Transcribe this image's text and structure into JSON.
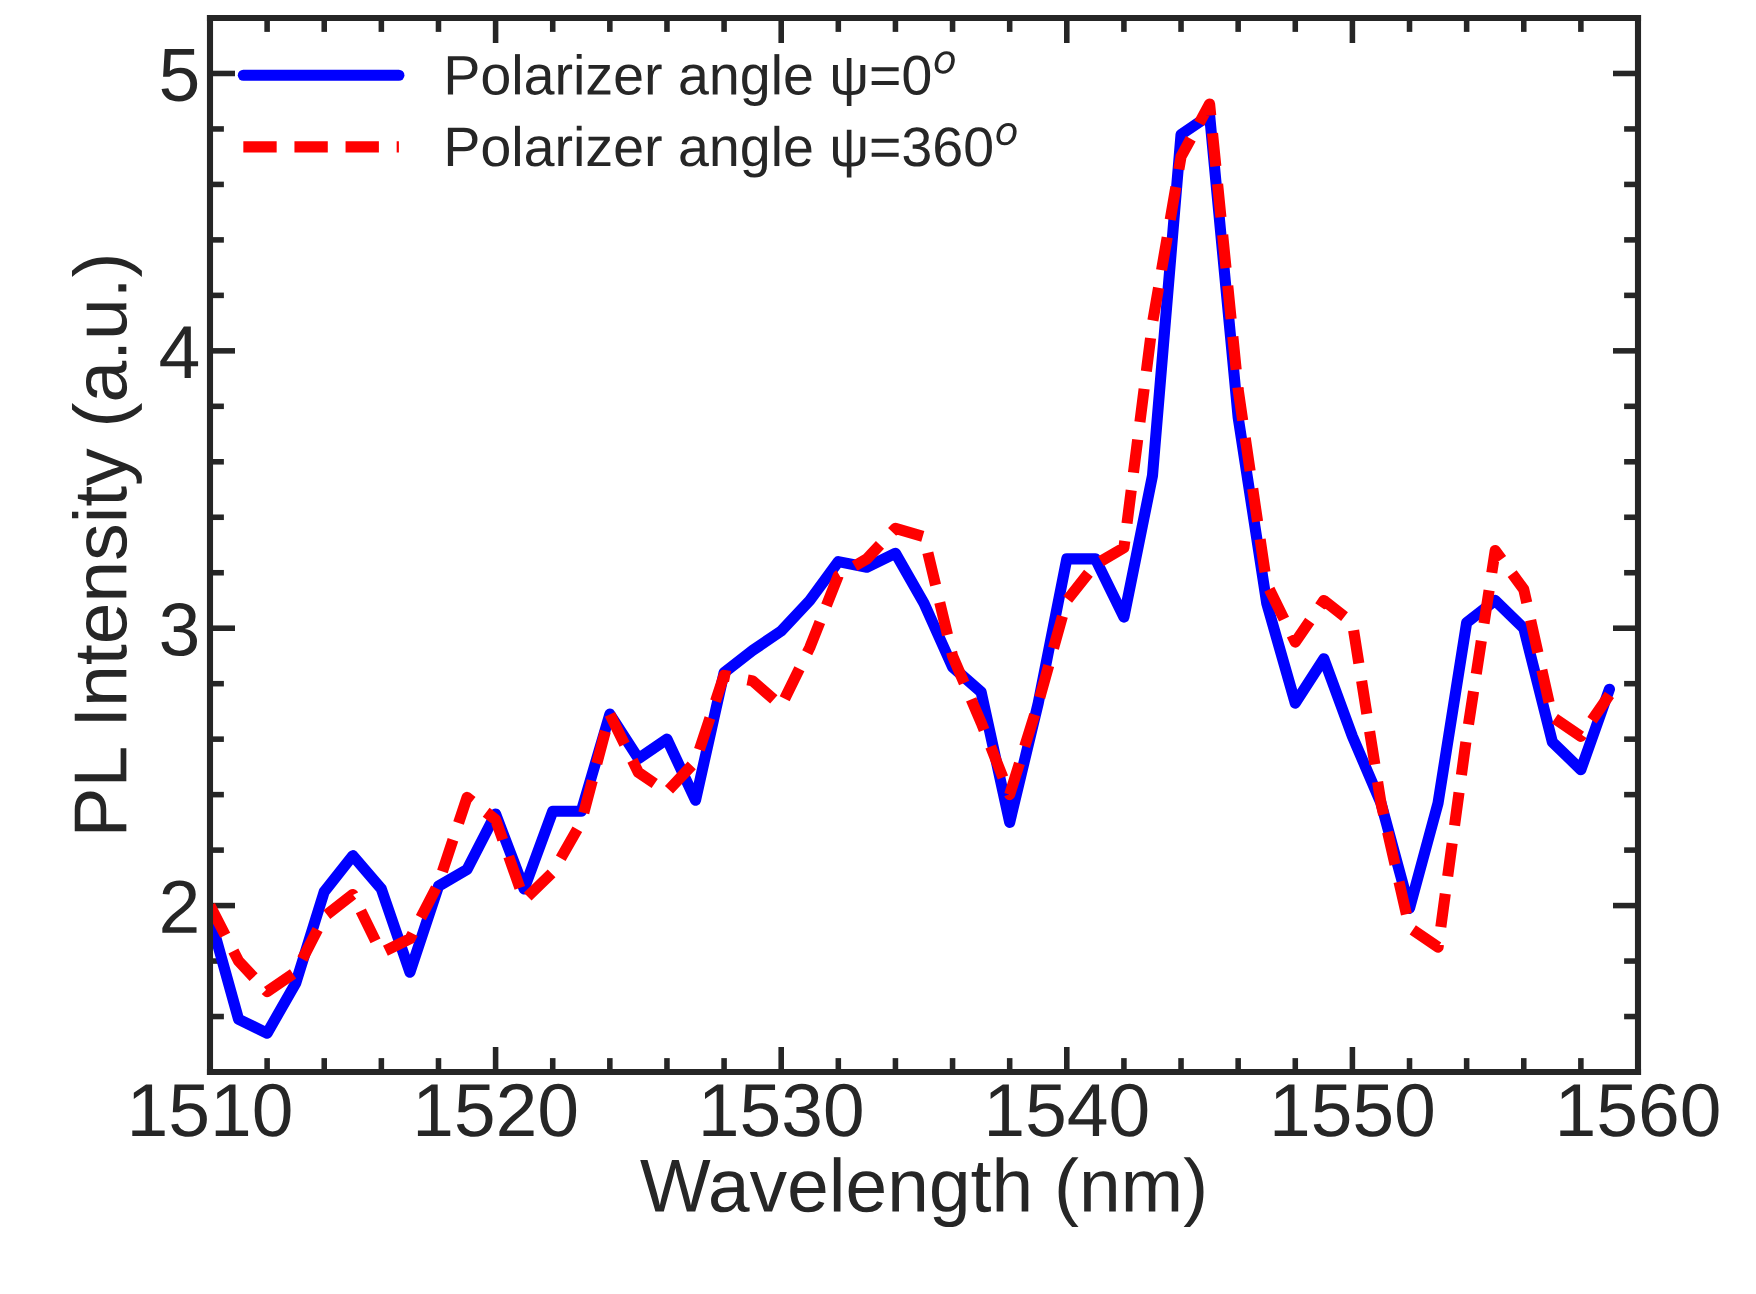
{
  "chart_data": {
    "type": "line",
    "xlabel": "Wavelength (nm)",
    "ylabel": "PL Intensity (a.u.)",
    "x": [
      1510,
      1511,
      1512,
      1513,
      1514,
      1515,
      1516,
      1517,
      1518,
      1519,
      1520,
      1521,
      1522,
      1523,
      1524,
      1525,
      1526,
      1527,
      1528,
      1529,
      1530,
      1531,
      1532,
      1533,
      1534,
      1535,
      1536,
      1537,
      1538,
      1539,
      1540,
      1541,
      1542,
      1543,
      1544,
      1545,
      1546,
      1547,
      1548,
      1549,
      1550,
      1551,
      1552,
      1553,
      1554,
      1555,
      1556,
      1557,
      1558,
      1559
    ],
    "series": [
      {
        "name": "Polarizer angle ψ=0$^{o}$",
        "color": "#0000ff",
        "line_style": "solid",
        "values": [
          1.96,
          1.59,
          1.54,
          1.72,
          2.05,
          2.18,
          2.06,
          1.76,
          2.07,
          2.13,
          2.33,
          2.06,
          2.34,
          2.34,
          2.69,
          2.53,
          2.6,
          2.38,
          2.84,
          2.92,
          2.99,
          3.1,
          3.24,
          3.22,
          3.27,
          3.09,
          2.86,
          2.77,
          2.3,
          2.73,
          3.25,
          3.25,
          3.04,
          3.55,
          4.78,
          4.85,
          3.76,
          3.09,
          2.73,
          2.89,
          2.61,
          2.37,
          1.99,
          2.37,
          3.02,
          3.1,
          3.0,
          2.59,
          2.49,
          2.78
        ]
      },
      {
        "name": "Polarizer angle ψ=360$^{o}$",
        "color": "#ff0000",
        "line_style": "dashed",
        "values": [
          2.0,
          1.8,
          1.69,
          1.76,
          1.96,
          2.04,
          1.83,
          1.88,
          2.08,
          2.39,
          2.31,
          2.02,
          2.12,
          2.3,
          2.69,
          2.48,
          2.41,
          2.52,
          2.83,
          2.81,
          2.72,
          2.93,
          3.19,
          3.25,
          3.36,
          3.33,
          2.9,
          2.66,
          2.4,
          2.73,
          3.1,
          3.23,
          3.29,
          4.1,
          4.7,
          4.89,
          3.86,
          3.16,
          2.95,
          3.1,
          3.02,
          2.37,
          1.92,
          1.85,
          2.61,
          3.28,
          3.14,
          2.68,
          2.61,
          2.76
        ]
      }
    ],
    "xlim": [
      1510,
      1560
    ],
    "xticks": [
      1510,
      1520,
      1530,
      1540,
      1550,
      1560
    ],
    "ylim": [
      1.4,
      5.2
    ],
    "yticks": [
      2,
      3,
      4,
      5
    ],
    "grid": false,
    "legend": "top left"
  }
}
